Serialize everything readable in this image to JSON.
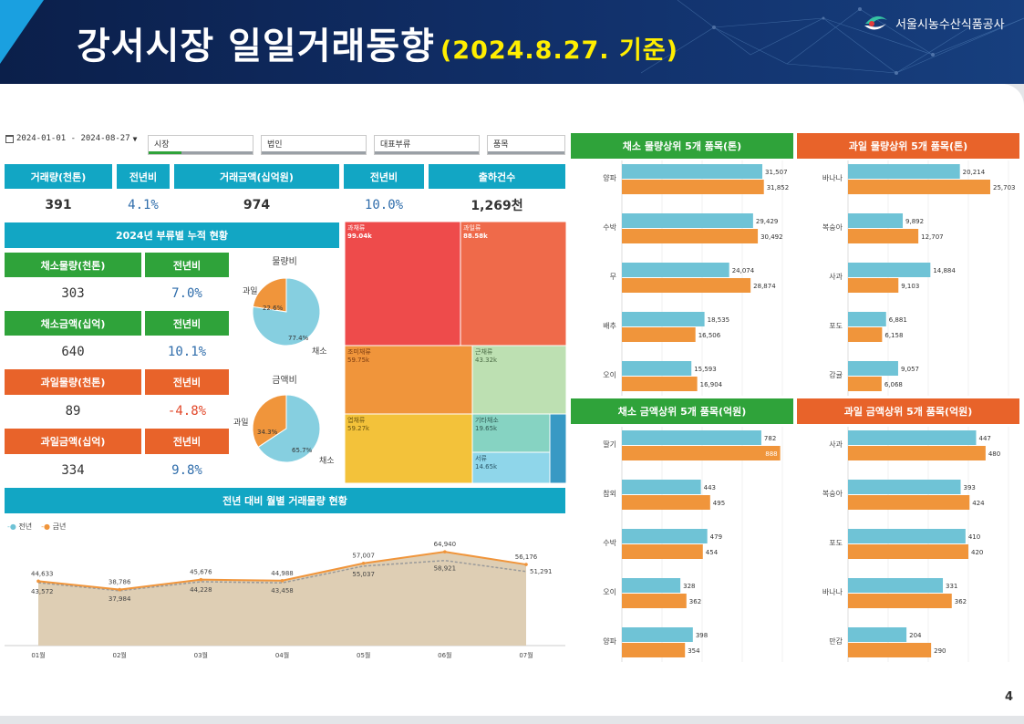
{
  "header": {
    "title": "강서시장 일일거래동향",
    "date": "(2024.8.27. 기준)",
    "org": "서울시농수산식품공사"
  },
  "page_number": "4",
  "filters": {
    "date_range": "2024-01-01 - 2024-08-27",
    "market": "시장",
    "corporation": "법인",
    "category": "대표부류",
    "item": "품목"
  },
  "kpi": {
    "volume_label": "거래량(천톤)",
    "volume_yoy_label": "전년비",
    "amount_label": "거래금액(십억원)",
    "amount_yoy_label": "전년비",
    "shipments_label": "출하건수",
    "volume": "391",
    "volume_yoy": "4.1%",
    "amount": "974",
    "amount_yoy": "10.0%",
    "shipments": "1,269천"
  },
  "cumulative": {
    "title": "2024년 부류별 누적 현황",
    "rows": [
      {
        "label": "채소물량(천톤)",
        "yoy_label": "전년비",
        "value": "303",
        "yoy": "7.0%",
        "color": "#2fa33a"
      },
      {
        "label": "채소금액(십억)",
        "yoy_label": "전년비",
        "value": "640",
        "yoy": "10.1%",
        "color": "#2fa33a"
      },
      {
        "label": "과일물량(천톤)",
        "yoy_label": "전년비",
        "value": "89",
        "yoy": "-4.8%",
        "color": "#e8632a"
      },
      {
        "label": "과일금액(십억)",
        "yoy_label": "전년비",
        "value": "334",
        "yoy": "9.8%",
        "color": "#e8632a"
      }
    ],
    "pie_volume": {
      "title": "물량비",
      "fruit_label": "과일",
      "veg_label": "채소",
      "fruit_pct": "22.6%",
      "veg_pct": "77.4%",
      "fruit": 22.6,
      "veg": 77.4
    },
    "pie_amount": {
      "title": "금액비",
      "fruit_label": "과일",
      "veg_label": "채소",
      "fruit_pct": "34.3%",
      "veg_pct": "65.7%",
      "fruit": 34.3,
      "veg": 65.7
    }
  },
  "treemap": [
    {
      "name": "과채류",
      "value": "99.04k",
      "color": "#ee4b4b"
    },
    {
      "name": "과일류",
      "value": "88.58k",
      "color": "#ef6a4a"
    },
    {
      "name": "조미채류",
      "value": "59.75k",
      "color": "#f0953b"
    },
    {
      "name": "근채류",
      "value": "43.32k",
      "color": "#bde0b2"
    },
    {
      "name": "엽채류",
      "value": "59.27k",
      "color": "#f3c23a"
    },
    {
      "name": "기타채소",
      "value": "19.65k",
      "color": "#86d3c2"
    },
    {
      "name": "서류",
      "value": "14.65k",
      "color": "#8fd6ea"
    },
    {
      "name": "",
      "value": "",
      "color": "#3899c4"
    }
  ],
  "monthly": {
    "title": "전년 대비 월별 거래물량 현황",
    "legend_prev": "전년",
    "legend_curr": "금년",
    "prev_color": "#6fc3d6",
    "curr_color": "#f0953b"
  },
  "panels": {
    "veg_volume_title": "채소 물량상위 5개 품목(톤)",
    "fruit_volume_title": "과일 물량상위 5개 품목(톤)",
    "veg_amount_title": "채소 금액상위 5개 품목(억원)",
    "fruit_amount_title": "과일 금액상위 5개 품목(억원)"
  },
  "chart_data": [
    {
      "type": "line",
      "title": "전년 대비 월별 거래물량 현황",
      "categories": [
        "01월",
        "02월",
        "03월",
        "04월",
        "05월",
        "06월",
        "07월"
      ],
      "series": [
        {
          "name": "전년",
          "values": [
            43572,
            37984,
            44228,
            43458,
            55037,
            58921,
            51291
          ]
        },
        {
          "name": "금년",
          "values": [
            44633,
            38786,
            45676,
            44988,
            57007,
            64940,
            56176
          ]
        }
      ]
    },
    {
      "type": "bar",
      "title": "채소 물량상위 5개 품목(톤)",
      "categories": [
        "양파",
        "수박",
        "무",
        "배추",
        "오이"
      ],
      "series": [
        {
          "name": "전년",
          "values": [
            31507,
            29429,
            24074,
            18535,
            15593
          ]
        },
        {
          "name": "금년",
          "values": [
            31852,
            30492,
            28874,
            16506,
            16904
          ]
        }
      ],
      "labels": [
        [
          "31,507",
          "31,852"
        ],
        [
          "29,429",
          "30,492"
        ],
        [
          "24,074",
          "28,874"
        ],
        [
          "18,535",
          "16,506"
        ],
        [
          "15,593",
          "16,904"
        ]
      ]
    },
    {
      "type": "bar",
      "title": "과일 물량상위 5개 품목(톤)",
      "categories": [
        "바나나",
        "복숭아",
        "사과",
        "포도",
        "감귤"
      ],
      "series": [
        {
          "name": "전년",
          "values": [
            20214,
            9892,
            14884,
            6881,
            9057
          ]
        },
        {
          "name": "금년",
          "values": [
            25703,
            12707,
            9103,
            6158,
            6068
          ]
        }
      ],
      "labels": [
        [
          "20,214",
          "25,703"
        ],
        [
          "9,892",
          "12,707"
        ],
        [
          "14,884",
          "9,103"
        ],
        [
          "6,881",
          "6,158"
        ],
        [
          "9,057",
          "6,068"
        ]
      ]
    },
    {
      "type": "bar",
      "title": "채소 금액상위 5개 품목(억원)",
      "categories": [
        "딸기",
        "참외",
        "수박",
        "오이",
        "양파"
      ],
      "series": [
        {
          "name": "전년",
          "values": [
            782,
            443,
            479,
            328,
            398
          ]
        },
        {
          "name": "금년",
          "values": [
            888,
            495,
            454,
            362,
            354
          ]
        }
      ],
      "labels": [
        [
          "782",
          "888"
        ],
        [
          "443",
          "495"
        ],
        [
          "479",
          "454"
        ],
        [
          "328",
          "362"
        ],
        [
          "398",
          "354"
        ]
      ]
    },
    {
      "type": "bar",
      "title": "과일 금액상위 5개 품목(억원)",
      "categories": [
        "사과",
        "복숭아",
        "포도",
        "바나나",
        "만감"
      ],
      "series": [
        {
          "name": "전년",
          "values": [
            447,
            393,
            410,
            331,
            204
          ]
        },
        {
          "name": "금년",
          "values": [
            480,
            424,
            420,
            362,
            290
          ]
        }
      ],
      "labels": [
        [
          "447",
          "480"
        ],
        [
          "393",
          "424"
        ],
        [
          "410",
          "420"
        ],
        [
          "331",
          "362"
        ],
        [
          "204",
          "290"
        ]
      ]
    }
  ]
}
